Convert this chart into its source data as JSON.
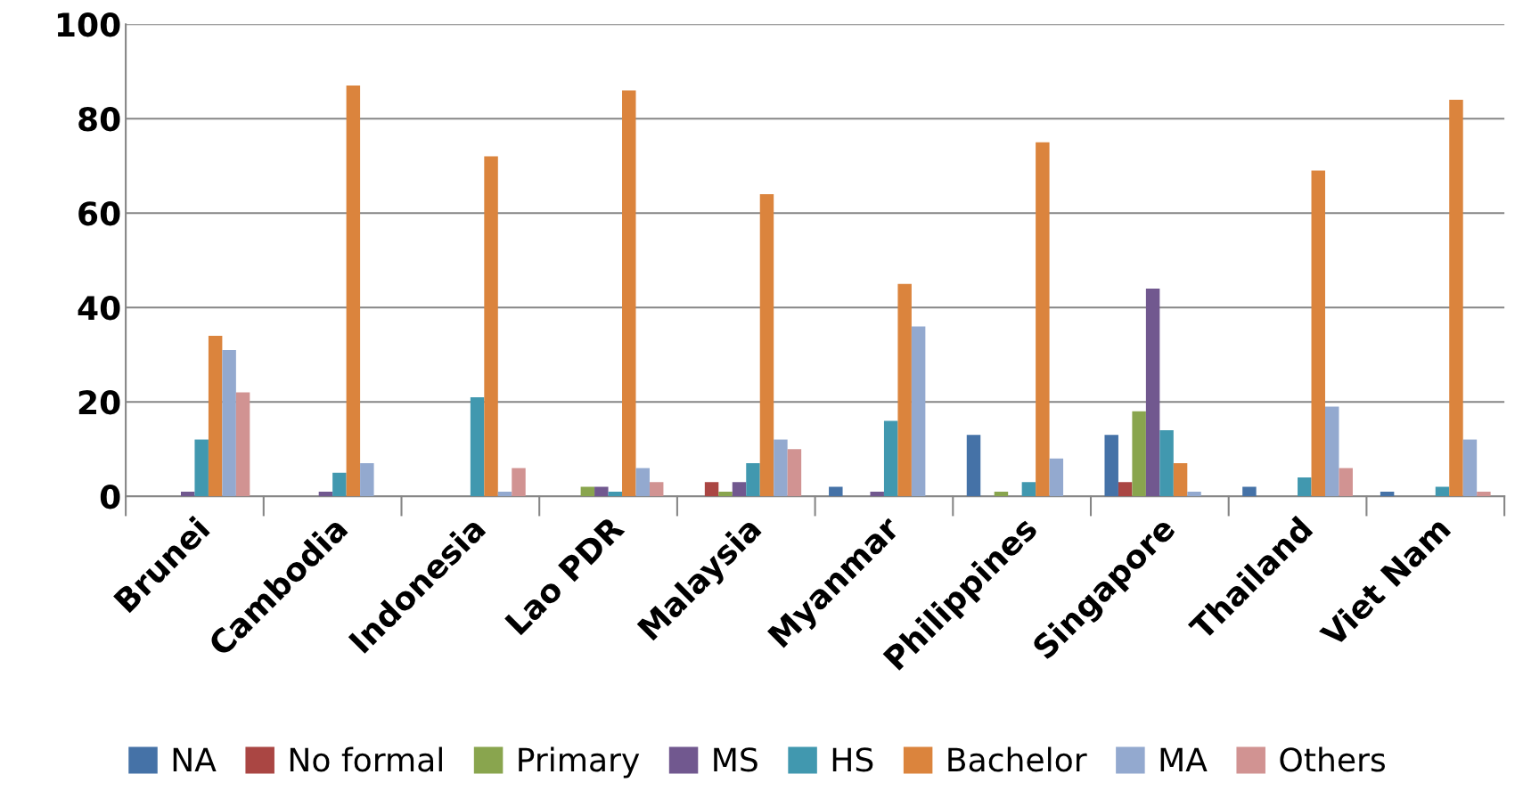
{
  "chart_data": {
    "type": "bar",
    "categories": [
      "Brunei",
      "Cambodia",
      "Indonesia",
      "Lao PDR",
      "Malaysia",
      "Myanmar",
      "Philippines",
      "Singapore",
      "Thailand",
      "Viet Nam"
    ],
    "series": [
      {
        "name": "NA",
        "color": "#4572a7",
        "values": [
          null,
          null,
          null,
          null,
          null,
          2,
          13,
          13,
          2,
          1
        ]
      },
      {
        "name": "No formal",
        "color": "#aa4643",
        "values": [
          null,
          null,
          null,
          null,
          3,
          null,
          null,
          3,
          null,
          null
        ]
      },
      {
        "name": "Primary",
        "color": "#89a54e",
        "values": [
          null,
          null,
          null,
          2,
          1,
          null,
          1,
          18,
          null,
          null
        ]
      },
      {
        "name": "MS",
        "color": "#71588f",
        "values": [
          1,
          1,
          null,
          2,
          3,
          1,
          null,
          44,
          null,
          null
        ]
      },
      {
        "name": "HS",
        "color": "#4198af",
        "values": [
          12,
          5,
          21,
          1,
          7,
          16,
          3,
          14,
          4,
          2
        ]
      },
      {
        "name": "Bachelor",
        "color": "#db843d",
        "values": [
          34,
          87,
          72,
          86,
          64,
          45,
          75,
          7,
          69,
          84
        ]
      },
      {
        "name": "MA",
        "color": "#93a9cf",
        "values": [
          31,
          7,
          1,
          6,
          12,
          36,
          8,
          1,
          19,
          12
        ]
      },
      {
        "name": "Others",
        "color": "#d19392",
        "values": [
          22,
          null,
          6,
          3,
          10,
          null,
          null,
          null,
          6,
          1
        ]
      }
    ],
    "ylim": [
      0,
      100
    ],
    "yticks": [
      0,
      20,
      40,
      60,
      80,
      100
    ],
    "grid": "y",
    "legend": "bottom"
  }
}
